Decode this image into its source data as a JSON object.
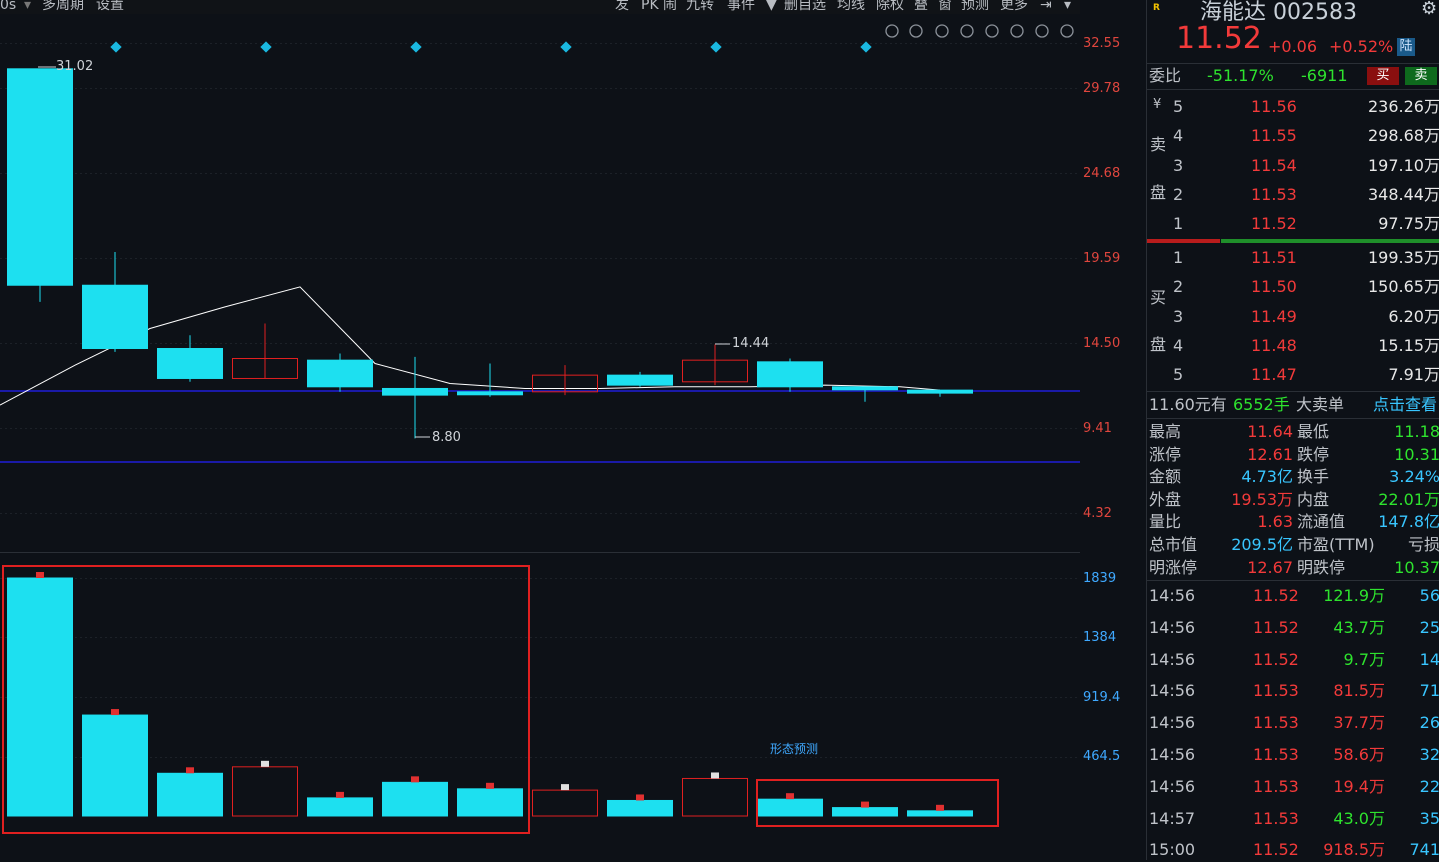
{
  "toolbar": {
    "left": [
      "0s",
      "多周期",
      "设置"
    ],
    "right": [
      "发",
      "PK",
      "闹",
      "九转",
      "事件",
      "▼",
      "删自选",
      "均线",
      "除权",
      "叠",
      "窗",
      "预测",
      "更多"
    ]
  },
  "price_axis": [
    "32.55",
    "29.78",
    "24.68",
    "19.59",
    "14.50",
    "9.41",
    "4.32"
  ],
  "volume_axis": [
    "1839",
    "1384",
    "919.4",
    "464.5"
  ],
  "annotations": {
    "high": "31.02",
    "mid_high": "14.44",
    "low": "8.80",
    "pattern_predict": "形态预测"
  },
  "colors": {
    "up": "#1de0f0",
    "down": "#e02020",
    "ma": "#ffffff",
    "support": "#1a1aa8",
    "accent": "#1ab8e0"
  },
  "candles": [
    {
      "o": 31.0,
      "c": 18.0,
      "h": 31.02,
      "l": 17.0,
      "vol": 1839,
      "up": false
    },
    {
      "o": 18.0,
      "c": 14.2,
      "h": 20.0,
      "l": 14.0,
      "vol": 780,
      "up": false
    },
    {
      "o": 14.2,
      "c": 12.4,
      "h": 15.0,
      "l": 12.2,
      "vol": 330,
      "up": false
    },
    {
      "o": 12.4,
      "c": 13.6,
      "h": 15.7,
      "l": 12.4,
      "vol": 380,
      "up": true
    },
    {
      "o": 13.5,
      "c": 11.9,
      "h": 13.9,
      "l": 11.6,
      "vol": 140,
      "up": false
    },
    {
      "o": 11.8,
      "c": 11.4,
      "h": 13.7,
      "l": 8.8,
      "vol": 260,
      "up": false
    },
    {
      "o": 11.6,
      "c": 11.5,
      "h": 13.3,
      "l": 11.3,
      "vol": 210,
      "up": false
    },
    {
      "o": 11.6,
      "c": 12.6,
      "h": 13.2,
      "l": 11.4,
      "vol": 200,
      "up": true
    },
    {
      "o": 12.6,
      "c": 12.0,
      "h": 12.8,
      "l": 11.9,
      "vol": 120,
      "up": false
    },
    {
      "o": 12.2,
      "c": 13.5,
      "h": 14.44,
      "l": 12.0,
      "vol": 290,
      "up": true
    },
    {
      "o": 13.4,
      "c": 11.9,
      "h": 13.6,
      "l": 11.6,
      "vol": 130,
      "up": false
    },
    {
      "o": 11.9,
      "c": 11.8,
      "h": 11.9,
      "l": 11.0,
      "vol": 65,
      "up": false
    },
    {
      "o": 11.7,
      "c": 11.55,
      "h": 11.7,
      "l": 11.3,
      "vol": 40,
      "up": false
    }
  ],
  "ma": [
    10.8,
    13.2,
    15.4,
    16.7,
    17.9,
    13.3,
    12.1,
    11.8,
    11.8,
    11.9,
    11.9,
    12.0,
    11.9,
    11.7
  ],
  "stock": {
    "name": "海能达",
    "code": "002583",
    "price": "11.52",
    "change": "+0.06",
    "pct": "+0.52%",
    "tag": "陆",
    "r_badge": "R"
  },
  "weibi": {
    "label": "委比",
    "pct": "-51.17%",
    "diff": "-6911",
    "buy": "买",
    "sell": "卖"
  },
  "sell_label": [
    "卖",
    "盘"
  ],
  "buy_label": [
    "买",
    "盘"
  ],
  "yen": "¥",
  "asks": [
    {
      "lvl": "5",
      "price": "11.56",
      "vol": "236.26万"
    },
    {
      "lvl": "4",
      "price": "11.55",
      "vol": "298.68万"
    },
    {
      "lvl": "3",
      "price": "11.54",
      "vol": "197.10万"
    },
    {
      "lvl": "2",
      "price": "11.53",
      "vol": "348.44万"
    },
    {
      "lvl": "1",
      "price": "11.52",
      "vol": "97.75万"
    }
  ],
  "bids": [
    {
      "lvl": "1",
      "price": "11.51",
      "vol": "199.35万"
    },
    {
      "lvl": "2",
      "price": "11.50",
      "vol": "150.65万"
    },
    {
      "lvl": "3",
      "price": "11.49",
      "vol": "6.20万"
    },
    {
      "lvl": "4",
      "price": "11.48",
      "vol": "15.15万"
    },
    {
      "lvl": "5",
      "price": "11.47",
      "vol": "7.91万"
    }
  ],
  "big_order": {
    "a": "11.60元有",
    "b": "6552手",
    "c": "大卖单",
    "link": "点击查看"
  },
  "stats": [
    {
      "l1": "最高",
      "v1": "11.64",
      "c1": "red",
      "l2": "最低",
      "v2": "11.18",
      "c2": "grn"
    },
    {
      "l1": "涨停",
      "v1": "12.61",
      "c1": "red",
      "l2": "跌停",
      "v2": "10.31",
      "c2": "grn"
    },
    {
      "l1": "金额",
      "v1": "4.73亿",
      "c1": "cyan",
      "l2": "换手",
      "v2": "3.24%",
      "c2": "cyan"
    },
    {
      "l1": "外盘",
      "v1": "19.53万",
      "c1": "red",
      "l2": "内盘",
      "v2": "22.01万",
      "c2": "grn"
    },
    {
      "l1": "量比",
      "v1": "1.63",
      "c1": "red",
      "l2": "流通值",
      "v2": "147.8亿",
      "c2": "cyan"
    },
    {
      "l1": "总市值",
      "v1": "209.5亿",
      "c1": "cyan",
      "l2": "市盈(TTM)",
      "v2": "亏损",
      "c2": "gray"
    },
    {
      "l1": "明涨停",
      "v1": "12.67",
      "c1": "red",
      "l2": "明跌停",
      "v2": "10.37",
      "c2": "grn"
    }
  ],
  "ticks": [
    {
      "t": "14:56",
      "p": "11.52",
      "v": "121.9万",
      "n": "56",
      "vc": "grn"
    },
    {
      "t": "14:56",
      "p": "11.52",
      "v": "43.7万",
      "n": "25",
      "vc": "grn"
    },
    {
      "t": "14:56",
      "p": "11.52",
      "v": "9.7万",
      "n": "14",
      "vc": "grn"
    },
    {
      "t": "14:56",
      "p": "11.53",
      "v": "81.5万",
      "n": "71",
      "vc": "red"
    },
    {
      "t": "14:56",
      "p": "11.53",
      "v": "37.7万",
      "n": "26",
      "vc": "red"
    },
    {
      "t": "14:56",
      "p": "11.53",
      "v": "58.6万",
      "n": "32",
      "vc": "red"
    },
    {
      "t": "14:56",
      "p": "11.53",
      "v": "19.4万",
      "n": "22",
      "vc": "red"
    },
    {
      "t": "14:57",
      "p": "11.53",
      "v": "43.0万",
      "n": "35",
      "vc": "grn"
    },
    {
      "t": "15:00",
      "p": "11.52",
      "v": "918.5万",
      "n": "741",
      "vc": "red"
    }
  ]
}
